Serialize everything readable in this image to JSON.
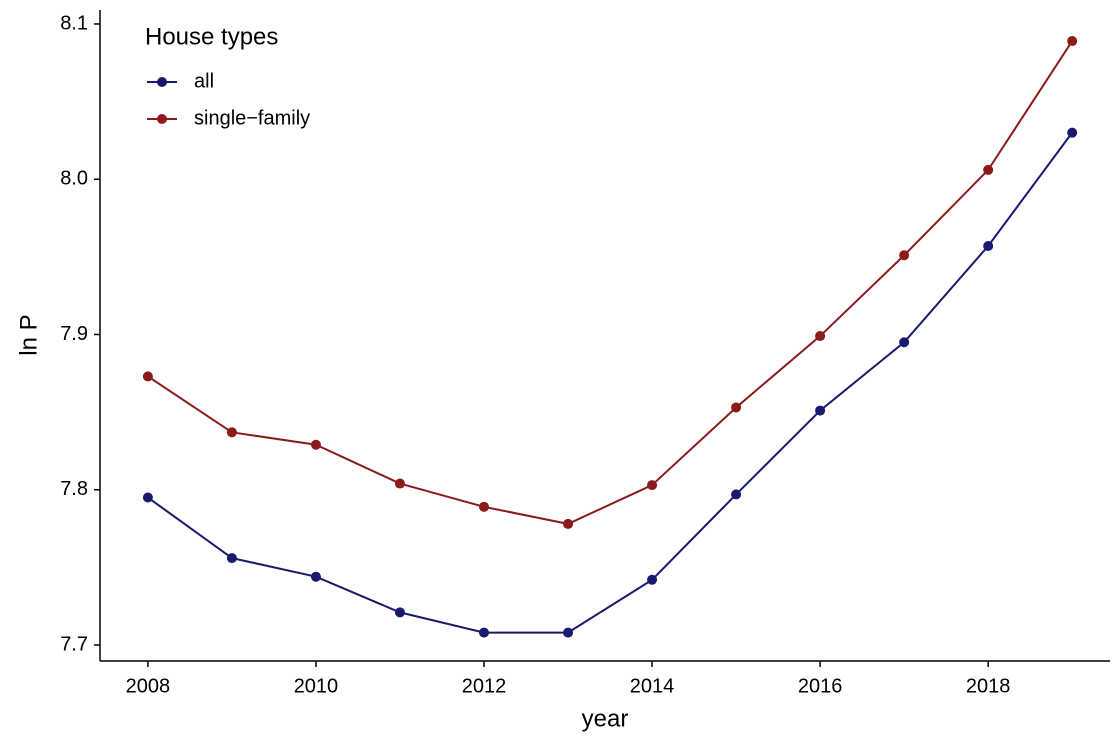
{
  "chart_data": {
    "type": "line",
    "xlabel": "year",
    "ylabel": "ln P",
    "legend_title": "House types",
    "legend": "top-left",
    "x": [
      2008,
      2009,
      2010,
      2011,
      2012,
      2013,
      2014,
      2015,
      2016,
      2017,
      2018,
      2019
    ],
    "series": [
      {
        "name": "all",
        "color": "#191970",
        "values": [
          7.795,
          7.756,
          7.744,
          7.721,
          7.708,
          7.708,
          7.742,
          7.797,
          7.851,
          7.895,
          7.957,
          8.03
        ]
      },
      {
        "name": "single−family",
        "color": "#8b1a1a",
        "values": [
          7.873,
          7.837,
          7.829,
          7.804,
          7.789,
          7.778,
          7.803,
          7.853,
          7.899,
          7.951,
          8.006,
          8.089
        ]
      }
    ],
    "xlim": [
      2007.43,
      2019.45
    ],
    "ylim": [
      7.6897,
      8.109
    ],
    "xticks": [
      2008,
      2010,
      2012,
      2014,
      2016,
      2018
    ],
    "yticks": [
      7.7,
      7.8,
      7.9,
      {
        "value": 8,
        "label": "8.0"
      },
      8.1
    ],
    "grid": false
  }
}
